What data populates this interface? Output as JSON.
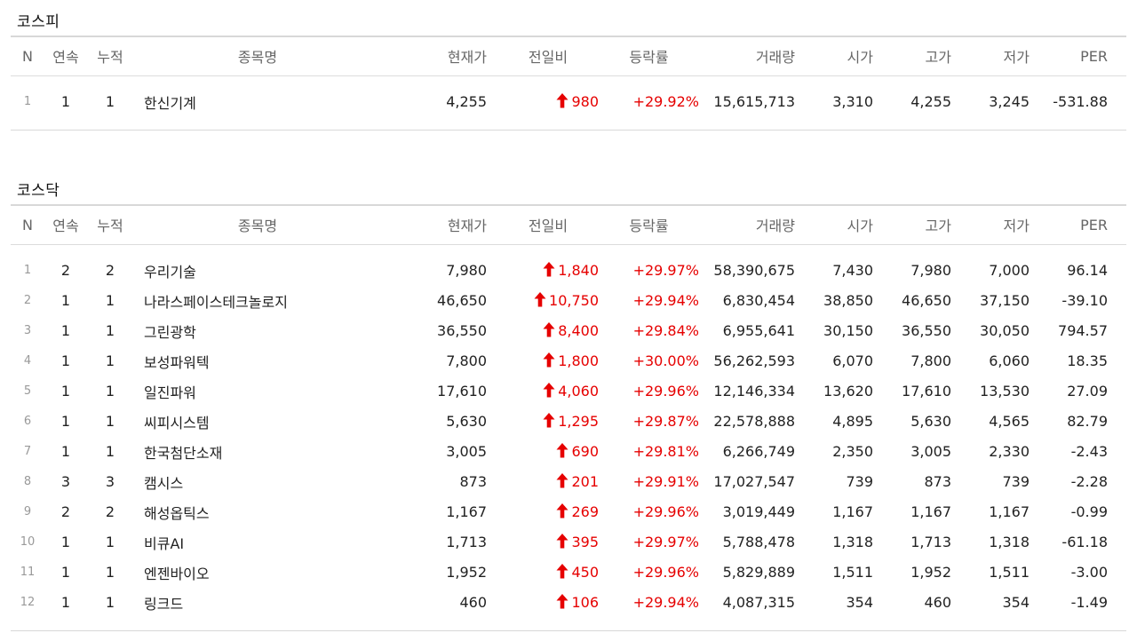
{
  "columns": [
    "N",
    "연속",
    "누적",
    "종목명",
    "현재가",
    "전일비",
    "등락률",
    "거래량",
    "시가",
    "고가",
    "저가",
    "PER"
  ],
  "accent_up_color": "#e60000",
  "change_icon": "up-arrow-icon",
  "markets": [
    {
      "title": "코스피",
      "rows": [
        {
          "n": "1",
          "streak": "1",
          "total": "1",
          "name": "한신기계",
          "price": "4,255",
          "change": "980",
          "rate": "+29.92%",
          "volume": "15,615,713",
          "open": "3,310",
          "high": "4,255",
          "low": "3,245",
          "per": "-531.88"
        }
      ]
    },
    {
      "title": "코스닥",
      "rows": [
        {
          "n": "1",
          "streak": "2",
          "total": "2",
          "name": "우리기술",
          "price": "7,980",
          "change": "1,840",
          "rate": "+29.97%",
          "volume": "58,390,675",
          "open": "7,430",
          "high": "7,980",
          "low": "7,000",
          "per": "96.14"
        },
        {
          "n": "2",
          "streak": "1",
          "total": "1",
          "name": "나라스페이스테크놀로지",
          "price": "46,650",
          "change": "10,750",
          "rate": "+29.94%",
          "volume": "6,830,454",
          "open": "38,850",
          "high": "46,650",
          "low": "37,150",
          "per": "-39.10"
        },
        {
          "n": "3",
          "streak": "1",
          "total": "1",
          "name": "그린광학",
          "price": "36,550",
          "change": "8,400",
          "rate": "+29.84%",
          "volume": "6,955,641",
          "open": "30,150",
          "high": "36,550",
          "low": "30,050",
          "per": "794.57"
        },
        {
          "n": "4",
          "streak": "1",
          "total": "1",
          "name": "보성파워텍",
          "price": "7,800",
          "change": "1,800",
          "rate": "+30.00%",
          "volume": "56,262,593",
          "open": "6,070",
          "high": "7,800",
          "low": "6,060",
          "per": "18.35"
        },
        {
          "n": "5",
          "streak": "1",
          "total": "1",
          "name": "일진파워",
          "price": "17,610",
          "change": "4,060",
          "rate": "+29.96%",
          "volume": "12,146,334",
          "open": "13,620",
          "high": "17,610",
          "low": "13,530",
          "per": "27.09"
        },
        {
          "n": "6",
          "streak": "1",
          "total": "1",
          "name": "씨피시스템",
          "price": "5,630",
          "change": "1,295",
          "rate": "+29.87%",
          "volume": "22,578,888",
          "open": "4,895",
          "high": "5,630",
          "low": "4,565",
          "per": "82.79"
        },
        {
          "n": "7",
          "streak": "1",
          "total": "1",
          "name": "한국첨단소재",
          "price": "3,005",
          "change": "690",
          "rate": "+29.81%",
          "volume": "6,266,749",
          "open": "2,350",
          "high": "3,005",
          "low": "2,330",
          "per": "-2.43"
        },
        {
          "n": "8",
          "streak": "3",
          "total": "3",
          "name": "캠시스",
          "price": "873",
          "change": "201",
          "rate": "+29.91%",
          "volume": "17,027,547",
          "open": "739",
          "high": "873",
          "low": "739",
          "per": "-2.28"
        },
        {
          "n": "9",
          "streak": "2",
          "total": "2",
          "name": "해성옵틱스",
          "price": "1,167",
          "change": "269",
          "rate": "+29.96%",
          "volume": "3,019,449",
          "open": "1,167",
          "high": "1,167",
          "low": "1,167",
          "per": "-0.99"
        },
        {
          "n": "10",
          "streak": "1",
          "total": "1",
          "name": "비큐AI",
          "price": "1,713",
          "change": "395",
          "rate": "+29.97%",
          "volume": "5,788,478",
          "open": "1,318",
          "high": "1,713",
          "low": "1,318",
          "per": "-61.18"
        },
        {
          "n": "11",
          "streak": "1",
          "total": "1",
          "name": "엔젠바이오",
          "price": "1,952",
          "change": "450",
          "rate": "+29.96%",
          "volume": "5,829,889",
          "open": "1,511",
          "high": "1,952",
          "low": "1,511",
          "per": "-3.00"
        },
        {
          "n": "12",
          "streak": "1",
          "total": "1",
          "name": "링크드",
          "price": "460",
          "change": "106",
          "rate": "+29.94%",
          "volume": "4,087,315",
          "open": "354",
          "high": "460",
          "low": "354",
          "per": "-1.49"
        }
      ]
    }
  ]
}
